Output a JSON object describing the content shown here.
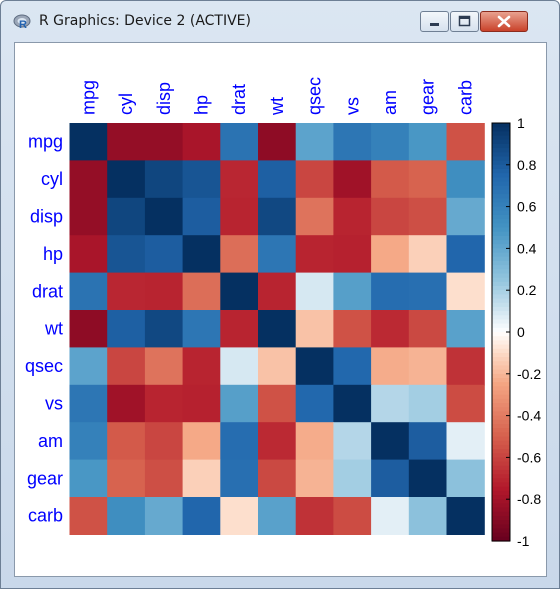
{
  "window": {
    "title": "R Graphics: Device 2 (ACTIVE)",
    "controls": {
      "minimize_icon": "minimize-icon",
      "maximize_icon": "maximize-icon",
      "close_icon": "close-icon"
    },
    "app_icon": "r-logo-icon"
  },
  "colors": {
    "negative": "#67001f",
    "zero": "#ffffff",
    "positive": "#053061",
    "label": "#0000ff"
  },
  "chart_data": {
    "type": "heatmap",
    "title": "",
    "variables": [
      "mpg",
      "cyl",
      "disp",
      "hp",
      "drat",
      "wt",
      "qsec",
      "vs",
      "am",
      "gear",
      "carb"
    ],
    "matrix": [
      [
        1.0,
        -0.85,
        -0.85,
        -0.78,
        0.68,
        -0.87,
        0.42,
        0.66,
        0.6,
        0.48,
        -0.55
      ],
      [
        -0.85,
        1.0,
        0.9,
        0.83,
        -0.7,
        0.78,
        -0.59,
        -0.81,
        -0.52,
        -0.49,
        0.53
      ],
      [
        -0.85,
        0.9,
        1.0,
        0.79,
        -0.71,
        0.89,
        -0.43,
        -0.71,
        -0.59,
        -0.56,
        0.39
      ],
      [
        -0.78,
        0.83,
        0.79,
        1.0,
        -0.45,
        0.66,
        -0.71,
        -0.72,
        -0.24,
        -0.13,
        0.75
      ],
      [
        0.68,
        -0.7,
        -0.71,
        -0.45,
        1.0,
        -0.71,
        0.09,
        0.44,
        0.71,
        0.7,
        -0.09
      ],
      [
        -0.87,
        0.78,
        0.89,
        0.66,
        -0.71,
        1.0,
        -0.17,
        -0.55,
        -0.69,
        -0.58,
        0.43
      ],
      [
        0.42,
        -0.59,
        -0.43,
        -0.71,
        0.09,
        -0.17,
        1.0,
        0.74,
        -0.23,
        -0.21,
        -0.66
      ],
      [
        0.66,
        -0.81,
        -0.71,
        -0.72,
        0.44,
        -0.55,
        0.74,
        1.0,
        0.17,
        0.21,
        -0.57
      ],
      [
        0.6,
        -0.52,
        -0.59,
        -0.24,
        0.71,
        -0.69,
        -0.23,
        0.17,
        1.0,
        0.79,
        0.06
      ],
      [
        0.48,
        -0.49,
        -0.56,
        -0.13,
        0.7,
        -0.58,
        -0.21,
        0.21,
        0.79,
        1.0,
        0.27
      ],
      [
        -0.55,
        0.53,
        0.39,
        0.75,
        -0.09,
        0.43,
        -0.66,
        -0.57,
        0.06,
        0.27,
        1.0
      ]
    ],
    "colorbar": {
      "min": -1,
      "max": 1,
      "ticks": [
        "1",
        "0.8",
        "0.6",
        "0.4",
        "0.2",
        "0",
        "-0.2",
        "-0.4",
        "-0.6",
        "-0.8",
        "-1"
      ]
    },
    "grid": false,
    "legend_position": "right"
  }
}
